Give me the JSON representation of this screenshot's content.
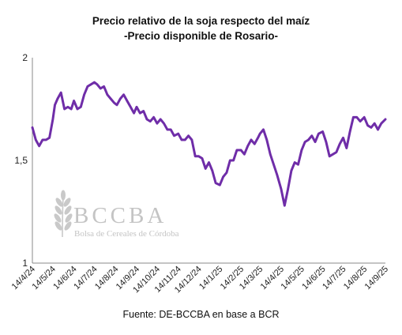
{
  "chart_data": {
    "type": "line",
    "title": "Precio relativo de la soja respecto del maíz",
    "subtitle": "-Precio disponible de Rosario-",
    "xlabel": "",
    "ylabel": "",
    "ylim": [
      1,
      2
    ],
    "yticks": [
      "2",
      "1,5",
      "1"
    ],
    "ytick_values": [
      2,
      1.5,
      1
    ],
    "xticks": [
      "14/4/24",
      "14/5/24",
      "14/6/24",
      "14/7/24",
      "14/8/24",
      "14/9/24",
      "14/10/24",
      "14/11/24",
      "14/12/24",
      "14/1/25",
      "14/2/25",
      "14/3/25",
      "14/4/25",
      "14/5/25",
      "14/6/25",
      "14/7/25",
      "14/8/25",
      "14/9/25"
    ],
    "grid": false,
    "legend": "none",
    "line_color": "#6f2da8",
    "series": [
      {
        "x": [
          "2024-04-14",
          "2024-04-19",
          "2024-04-24",
          "2024-04-29",
          "2024-05-04",
          "2024-05-09",
          "2024-05-14",
          "2024-05-17",
          "2024-05-21",
          "2024-05-26",
          "2024-05-31",
          "2024-06-05",
          "2024-06-10",
          "2024-06-14",
          "2024-06-19",
          "2024-06-24",
          "2024-06-29",
          "2024-07-04",
          "2024-07-09",
          "2024-07-14",
          "2024-07-18",
          "2024-07-23",
          "2024-07-28",
          "2024-08-02",
          "2024-08-07",
          "2024-08-12",
          "2024-08-16",
          "2024-08-21",
          "2024-08-26",
          "2024-08-31",
          "2024-09-05",
          "2024-09-10",
          "2024-09-14",
          "2024-09-19",
          "2024-09-24",
          "2024-09-29",
          "2024-10-04",
          "2024-10-09",
          "2024-10-14",
          "2024-10-19",
          "2024-10-24",
          "2024-10-29",
          "2024-11-03",
          "2024-11-08",
          "2024-11-14",
          "2024-11-19",
          "2024-11-24",
          "2024-11-29",
          "2024-12-04",
          "2024-12-09",
          "2024-12-14",
          "2024-12-19",
          "2024-12-24",
          "2024-12-29",
          "2025-01-03",
          "2025-01-08",
          "2025-01-14",
          "2025-01-19",
          "2025-01-24",
          "2025-01-29",
          "2025-02-03",
          "2025-02-08",
          "2025-02-14",
          "2025-02-19",
          "2025-02-24",
          "2025-03-01",
          "2025-03-06",
          "2025-03-11",
          "2025-03-14",
          "2025-03-19",
          "2025-03-24",
          "2025-03-29",
          "2025-04-03",
          "2025-04-08",
          "2025-04-14",
          "2025-04-19",
          "2025-04-24",
          "2025-04-29",
          "2025-05-04",
          "2025-05-09",
          "2025-05-14",
          "2025-05-19",
          "2025-05-24",
          "2025-05-29",
          "2025-06-03",
          "2025-06-08",
          "2025-06-14",
          "2025-06-19",
          "2025-06-24",
          "2025-06-29",
          "2025-07-04",
          "2025-07-09",
          "2025-07-14",
          "2025-07-19",
          "2025-07-24",
          "2025-07-29",
          "2025-08-03",
          "2025-08-08",
          "2025-08-14",
          "2025-08-19",
          "2025-08-24",
          "2025-08-29",
          "2025-09-03",
          "2025-09-08",
          "2025-09-14"
        ],
        "y": [
          1.66,
          1.6,
          1.57,
          1.6,
          1.6,
          1.61,
          1.7,
          1.77,
          1.8,
          1.83,
          1.75,
          1.76,
          1.75,
          1.79,
          1.75,
          1.76,
          1.82,
          1.86,
          1.87,
          1.88,
          1.87,
          1.85,
          1.86,
          1.82,
          1.8,
          1.78,
          1.77,
          1.8,
          1.82,
          1.79,
          1.76,
          1.73,
          1.76,
          1.73,
          1.74,
          1.7,
          1.69,
          1.71,
          1.68,
          1.7,
          1.68,
          1.65,
          1.65,
          1.62,
          1.63,
          1.6,
          1.6,
          1.62,
          1.6,
          1.52,
          1.52,
          1.51,
          1.46,
          1.49,
          1.45,
          1.39,
          1.38,
          1.42,
          1.44,
          1.5,
          1.5,
          1.55,
          1.55,
          1.53,
          1.57,
          1.6,
          1.58,
          1.61,
          1.63,
          1.65,
          1.6,
          1.53,
          1.48,
          1.43,
          1.36,
          1.28,
          1.36,
          1.45,
          1.49,
          1.48,
          1.55,
          1.59,
          1.6,
          1.62,
          1.59,
          1.63,
          1.64,
          1.59,
          1.52,
          1.53,
          1.54,
          1.58,
          1.61,
          1.56,
          1.64,
          1.71,
          1.71,
          1.69,
          1.71,
          1.67,
          1.66,
          1.68,
          1.65,
          1.68,
          1.7
        ]
      }
    ]
  },
  "watermark": {
    "brand": "BCCBA",
    "subtitle": "Bolsa de Cereales de Córdoba",
    "icon": "wheat-icon"
  },
  "source_note": "Fuente: DE-BCCBA en base a BCR"
}
